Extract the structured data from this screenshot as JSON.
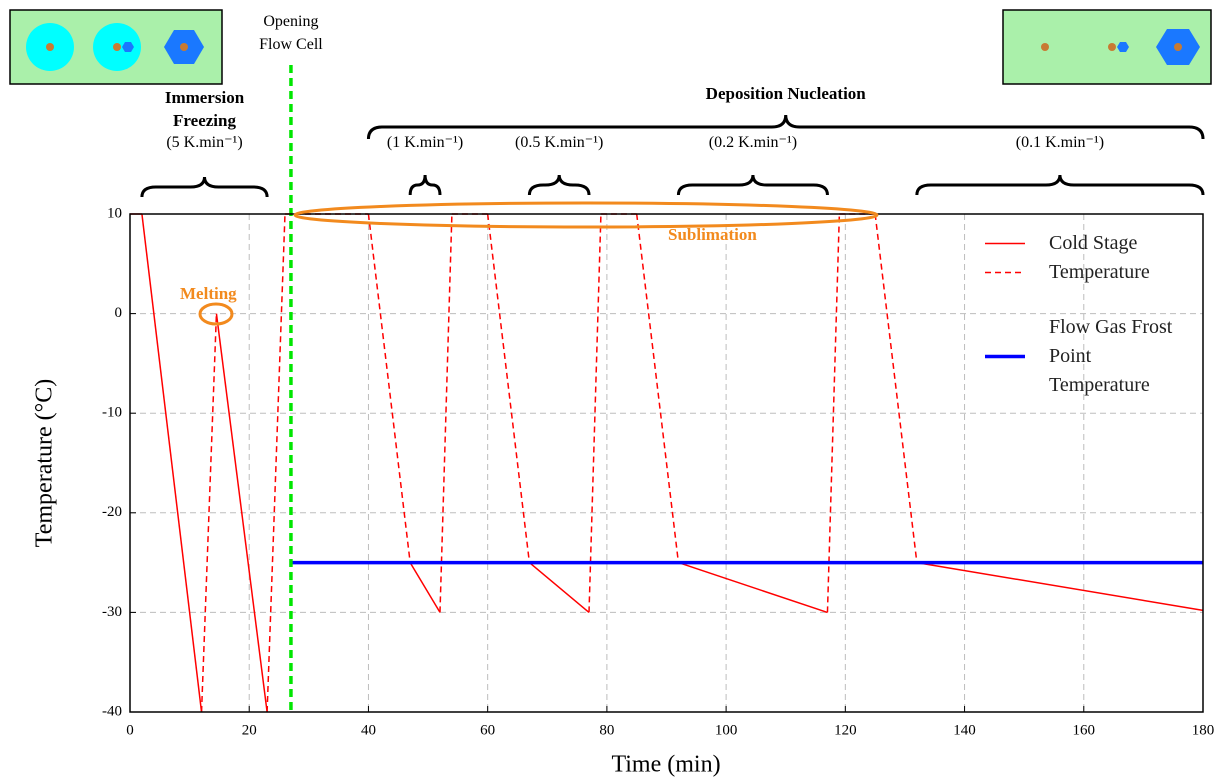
{
  "chart_data": {
    "type": "line",
    "xlabel": "Time (min)",
    "ylabel": "Temperature (°C)",
    "xlim": [
      0,
      180
    ],
    "ylim": [
      -40,
      10
    ],
    "xticks": [
      0,
      20,
      40,
      60,
      80,
      100,
      120,
      140,
      160,
      180
    ],
    "yticks": [
      -40,
      -30,
      -20,
      -10,
      0,
      10
    ],
    "grid": true,
    "legend": "upper right",
    "series": [
      {
        "name": "Cold Stage Temperature",
        "color": "#ff0000",
        "x": [
          0,
          2,
          12,
          14.5,
          23,
          26,
          40,
          47,
          52,
          54,
          60,
          67,
          77,
          79,
          85,
          92,
          117,
          119,
          125,
          132,
          180
        ],
        "values": [
          10,
          10,
          -40,
          0,
          -40,
          10,
          10,
          -25,
          -30,
          10,
          10,
          -25,
          -30,
          10,
          10,
          -25,
          -30,
          10,
          10,
          -25,
          -29.8
        ],
        "line_styles": [
          "solid",
          "solid",
          "solid",
          "dashed",
          "solid",
          "dashed",
          "dashed",
          "dashed",
          "solid",
          "dashed",
          "dashed",
          "dashed",
          "solid",
          "dashed",
          "dashed",
          "dashed",
          "solid",
          "dashed",
          "dashed",
          "dashed",
          "solid"
        ]
      },
      {
        "name": "Flow Gas Frost Point Temperature",
        "color": "#0000ff",
        "x": [
          27,
          180
        ],
        "values": [
          -25,
          -25
        ]
      }
    ],
    "markers": [
      {
        "x": 27,
        "label": "Opening Flow Cell",
        "color": "#00e600"
      }
    ],
    "phases": [
      {
        "label": "Immersion Freezing",
        "rate": "(5 K.min⁻¹)",
        "x_range": [
          2,
          23
        ]
      },
      {
        "label": "Deposition Nucleation",
        "x_range": [
          40,
          180
        ],
        "steps": [
          {
            "rate": "(1 K.min⁻¹)",
            "x_range": [
              47,
              52
            ]
          },
          {
            "rate": "(0.5 K.min⁻¹)",
            "x_range": [
              67,
              77
            ]
          },
          {
            "rate": "(0.2 K.min⁻¹)",
            "x_range": [
              92,
              117
            ]
          },
          {
            "rate": "(0.1 K.min⁻¹)",
            "x_range": [
              132,
              180
            ]
          }
        ]
      }
    ],
    "annotations": [
      {
        "text": "Sublimation",
        "color": "#f28a1e"
      },
      {
        "text": "Melting",
        "color": "#f28a1e"
      }
    ]
  }
}
